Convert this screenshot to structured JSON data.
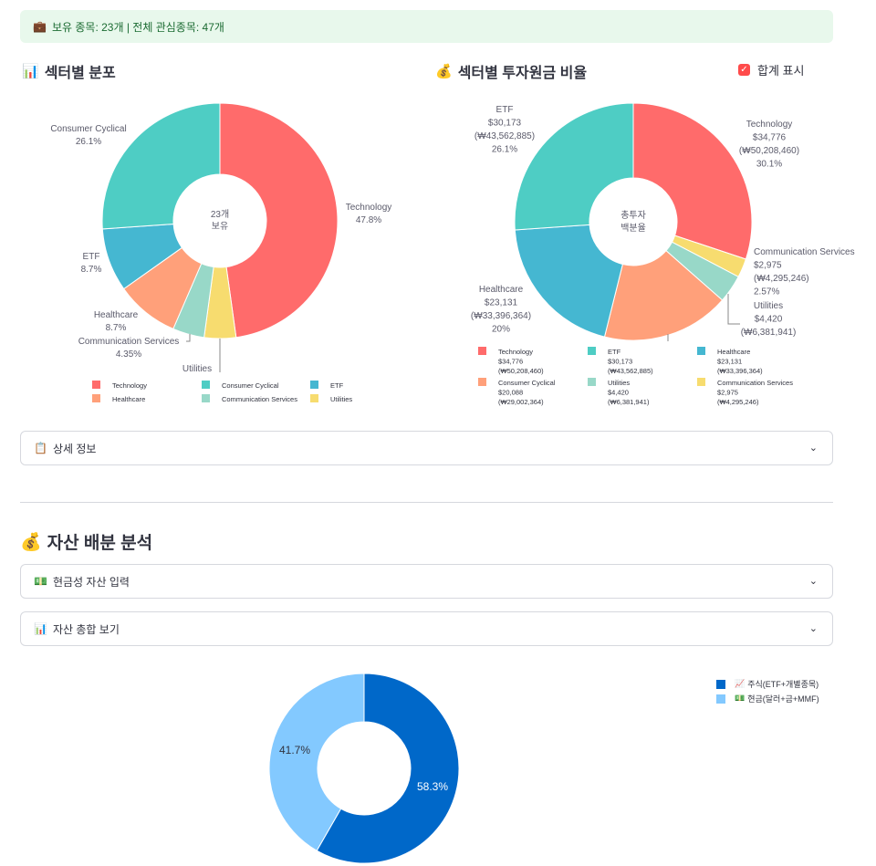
{
  "info_bar": {
    "icon": "💼",
    "text": "보유 종목: 23개 | 전체 관심종목: 47개"
  },
  "sector_dist": {
    "title_icon": "📊",
    "title": "섹터별 분포",
    "center_line1": "23개",
    "center_line2": "보유",
    "slices": [
      {
        "name": "Technology",
        "pct_label": "47.8%",
        "value": 47.8,
        "color": "#ff6b6b"
      },
      {
        "name": "Utilities",
        "pct_label": "4.35%",
        "value": 4.35,
        "color": "#f7dc6f"
      },
      {
        "name": "Communication Services",
        "pct_label": "4.35%",
        "value": 4.35,
        "color": "#98d8c8"
      },
      {
        "name": "Healthcare",
        "pct_label": "8.7%",
        "value": 8.7,
        "color": "#ffa07a"
      },
      {
        "name": "ETF",
        "pct_label": "8.7%",
        "value": 8.7,
        "color": "#45b7d1"
      },
      {
        "name": "Consumer Cyclical",
        "pct_label": "26.1%",
        "value": 26.1,
        "color": "#4ecdc4"
      }
    ],
    "legend": [
      {
        "name": "Technology",
        "color": "#ff6b6b"
      },
      {
        "name": "Consumer Cyclical",
        "color": "#4ecdc4"
      },
      {
        "name": "ETF",
        "color": "#45b7d1"
      },
      {
        "name": "Healthcare",
        "color": "#ffa07a"
      },
      {
        "name": "Communication Services",
        "color": "#98d8c8"
      },
      {
        "name": "Utilities",
        "color": "#f7dc6f"
      }
    ]
  },
  "sector_invest": {
    "title_icon": "💰",
    "title": "섹터별 투자원금 비율",
    "checkbox_label": "합계 표시",
    "center_line1": "총투자",
    "center_line2": "백분율",
    "slices": [
      {
        "name": "Technology",
        "usd": "$34,776",
        "krw": "(₩50,208,460)",
        "pct_label": "30.1%",
        "value": 30.1,
        "color": "#ff6b6b"
      },
      {
        "name": "Communication Services",
        "usd": "$2,975",
        "krw": "(₩4,295,246)",
        "pct_label": "2.57%",
        "value": 2.57,
        "color": "#f7dc6f"
      },
      {
        "name": "Utilities",
        "usd": "$4,420",
        "krw": "(₩6,381,941)",
        "pct_label": "",
        "value": 3.82,
        "color": "#98d8c8"
      },
      {
        "name": "Consumer Cyclical",
        "usd": "$20,088",
        "krw": "(₩29,002,364)",
        "pct_label": "",
        "value": 17.4,
        "color": "#ffa07a"
      },
      {
        "name": "Healthcare",
        "usd": "$23,131",
        "krw": "(₩33,396,364)",
        "pct_label": "20%",
        "value": 20.0,
        "color": "#45b7d1"
      },
      {
        "name": "ETF",
        "usd": "$30,173",
        "krw": "(₩43,562,885)",
        "pct_label": "26.1%",
        "value": 26.1,
        "color": "#4ecdc4"
      }
    ],
    "legend": [
      {
        "name": "Technology",
        "usd": "$34,776",
        "krw": "(₩50,208,460)",
        "color": "#ff6b6b"
      },
      {
        "name": "ETF",
        "usd": "$30,173",
        "krw": "(₩43,562,885)",
        "color": "#4ecdc4"
      },
      {
        "name": "Healthcare",
        "usd": "$23,131",
        "krw": "(₩33,396,364)",
        "color": "#45b7d1"
      },
      {
        "name": "Consumer Cyclical",
        "usd": "$20,088",
        "krw": "(₩29,002,364)",
        "color": "#ffa07a"
      },
      {
        "name": "Utilities",
        "usd": "$4,420",
        "krw": "(₩6,381,941)",
        "color": "#98d8c8"
      },
      {
        "name": "Communication Services",
        "usd": "$2,975",
        "krw": "(₩4,295,246)",
        "color": "#f7dc6f"
      }
    ]
  },
  "expander_detail": {
    "icon": "📋",
    "label": "상세 정보"
  },
  "asset_section": {
    "icon": "💰",
    "title": "자산 배분 분석"
  },
  "expander_cash": {
    "icon": "💵",
    "label": "현금성 자산 입력"
  },
  "expander_summary": {
    "icon": "📊",
    "label": "자산 총합 보기"
  },
  "asset_chart": {
    "slices": [
      {
        "name": "주식(ETF+개별종목)",
        "icon": "📈",
        "pct_label": "58.3%",
        "value": 58.3,
        "color": "#0068c9"
      },
      {
        "name": "현금(달러+금+MMF)",
        "icon": "💵",
        "pct_label": "41.7%",
        "value": 41.7,
        "color": "#83c9ff"
      }
    ]
  },
  "chart_data": [
    {
      "type": "pie",
      "title": "섹터별 분포",
      "categories": [
        "Technology",
        "Consumer Cyclical",
        "ETF",
        "Healthcare",
        "Communication Services",
        "Utilities"
      ],
      "values": [
        47.8,
        26.1,
        8.7,
        8.7,
        4.35,
        4.35
      ]
    },
    {
      "type": "pie",
      "title": "섹터별 투자원금 비율",
      "categories": [
        "Technology",
        "ETF",
        "Healthcare",
        "Consumer Cyclical",
        "Utilities",
        "Communication Services"
      ],
      "values": [
        34776,
        30173,
        23131,
        20088,
        4420,
        2975
      ],
      "percent": [
        30.1,
        26.1,
        20,
        17.4,
        3.82,
        2.57
      ]
    },
    {
      "type": "pie",
      "categories": [
        "주식(ETF+개별종목)",
        "현금(달러+금+MMF)"
      ],
      "values": [
        58.3,
        41.7
      ]
    }
  ]
}
